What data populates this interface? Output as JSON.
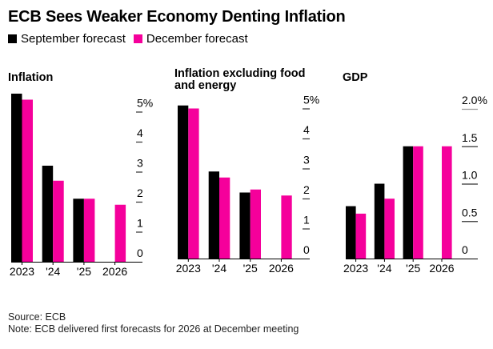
{
  "title": "ECB Sees Weaker Economy Denting Inflation",
  "legend": [
    {
      "label": "September forecast",
      "color": "#000000"
    },
    {
      "label": "December forecast",
      "color": "#F5009B"
    }
  ],
  "footer": {
    "source": "Source: ECB",
    "note": "Note: ECB delivered first forecasts for 2026 at December meeting"
  },
  "chart_data": [
    {
      "type": "bar",
      "title": "Inflation",
      "categories": [
        "2023",
        "'24",
        "'25",
        "2026"
      ],
      "series": [
        {
          "name": "September forecast",
          "color": "#000000",
          "values": [
            5.6,
            3.2,
            2.1,
            null
          ]
        },
        {
          "name": "December forecast",
          "color": "#F5009B",
          "values": [
            5.4,
            2.7,
            2.1,
            1.9
          ]
        }
      ],
      "yticks": [
        0,
        1,
        2,
        3,
        4,
        5
      ],
      "ytick_labels": [
        "0",
        "1",
        "2",
        "3",
        "4",
        "5%"
      ],
      "ylim": [
        0,
        5.6
      ],
      "ylabel": "",
      "xlabel": "",
      "axis_side": "right"
    },
    {
      "type": "bar",
      "title": "Inflation excluding food and energy",
      "categories": [
        "2023",
        "'24",
        "'25",
        "2026"
      ],
      "series": [
        {
          "name": "September forecast",
          "color": "#000000",
          "values": [
            5.1,
            2.9,
            2.2,
            null
          ]
        },
        {
          "name": "December forecast",
          "color": "#F5009B",
          "values": [
            5.0,
            2.7,
            2.3,
            2.1
          ]
        }
      ],
      "yticks": [
        0,
        1,
        2,
        3,
        4,
        5
      ],
      "ytick_labels": [
        "0",
        "1",
        "2",
        "3",
        "4",
        "5%"
      ],
      "ylim": [
        0,
        5.1
      ],
      "ylabel": "",
      "xlabel": "",
      "axis_side": "right"
    },
    {
      "type": "bar",
      "title": "GDP",
      "categories": [
        "2023",
        "'24",
        "'25",
        "2026"
      ],
      "series": [
        {
          "name": "September forecast",
          "color": "#000000",
          "values": [
            0.7,
            1.0,
            1.5,
            null
          ]
        },
        {
          "name": "December forecast",
          "color": "#F5009B",
          "values": [
            0.6,
            0.8,
            1.5,
            1.5
          ]
        }
      ],
      "yticks": [
        0,
        0.5,
        1.0,
        1.5,
        2.0
      ],
      "ytick_labels": [
        "0",
        "0.5",
        "1.0",
        "1.5",
        "2.0%"
      ],
      "ylim": [
        0,
        2.0
      ],
      "ylabel": "",
      "xlabel": "",
      "axis_side": "right"
    }
  ]
}
